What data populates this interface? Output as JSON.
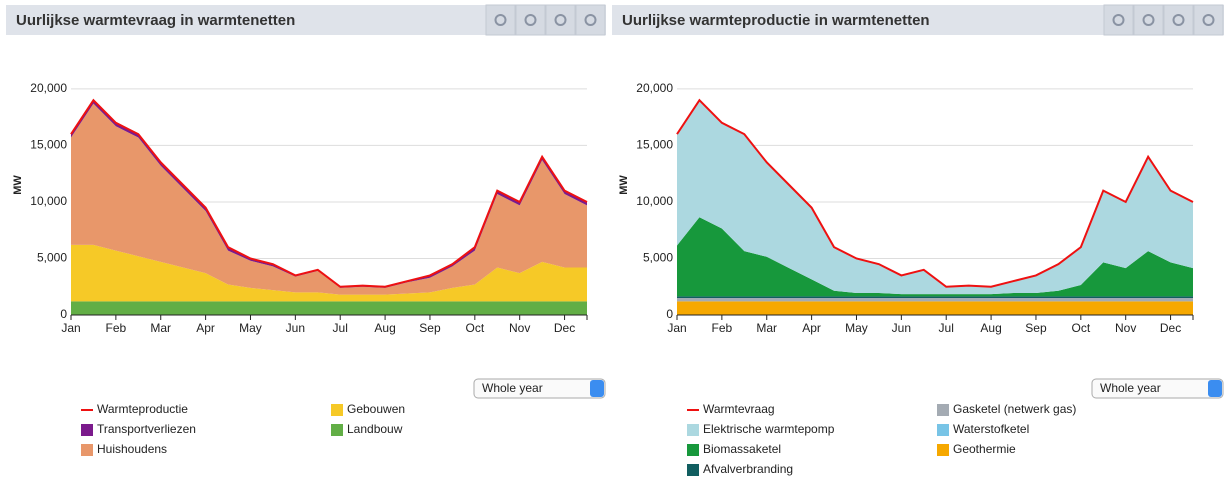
{
  "chart_data": [
    {
      "type": "area",
      "title": "Uurlijkse warmtevraag in warmtenetten",
      "ylabel": "MW",
      "selector": "Whole year",
      "categories": [
        "Jan",
        null,
        "Feb",
        null,
        "Mar",
        null,
        "Apr",
        null,
        "May",
        null,
        "Jun",
        null,
        "Jul",
        null,
        "Aug",
        null,
        "Sep",
        null,
        "Oct",
        null,
        "Nov",
        null,
        "Dec",
        null
      ],
      "ylim": [
        0,
        23000
      ],
      "yticks": [
        0,
        {
          "value": 5000,
          "label": "5,000"
        },
        {
          "value": 10000,
          "label": "10,000"
        },
        {
          "value": 15000,
          "label": "15,000"
        },
        {
          "value": 20000,
          "label": "20,000"
        }
      ],
      "grid": true,
      "series": [
        {
          "name": "Warmteproductie",
          "type": "line",
          "color": "#ee1111",
          "values": [
            16000,
            19000,
            17000,
            16000,
            13500,
            11500,
            9500,
            6000,
            5000,
            4500,
            3500,
            4000,
            2500,
            2600,
            2500,
            3000,
            3500,
            4500,
            6000,
            11000,
            10000,
            14000,
            11000,
            10000
          ]
        },
        {
          "name": "Transportverliezen",
          "type": "area",
          "color": "#7b1a8c",
          "values": [
            300,
            300,
            300,
            300,
            300,
            300,
            300,
            300,
            200,
            200,
            100,
            100,
            100,
            100,
            100,
            100,
            200,
            200,
            300,
            300,
            300,
            300,
            300,
            300
          ]
        },
        {
          "name": "Huishoudens",
          "type": "area",
          "color": "#e8976a",
          "values": [
            9500,
            12500,
            11000,
            10500,
            8500,
            7000,
            5500,
            3000,
            2400,
            2100,
            1400,
            1900,
            600,
            700,
            600,
            1000,
            1300,
            1900,
            3000,
            6500,
            6000,
            9000,
            6500,
            5500
          ]
        },
        {
          "name": "Gebouwen",
          "type": "area",
          "color": "#f6c927",
          "values": [
            5000,
            5000,
            4500,
            4000,
            3500,
            3000,
            2500,
            1500,
            1200,
            1000,
            800,
            800,
            600,
            600,
            600,
            700,
            800,
            1200,
            1500,
            3000,
            2500,
            3500,
            3000,
            3000
          ]
        },
        {
          "name": "Landbouw",
          "type": "area",
          "color": "#62ae46",
          "values": [
            1200,
            1200,
            1200,
            1200,
            1200,
            1200,
            1200,
            1200,
            1200,
            1200,
            1200,
            1200,
            1200,
            1200,
            1200,
            1200,
            1200,
            1200,
            1200,
            1200,
            1200,
            1200,
            1200,
            1200
          ]
        }
      ]
    },
    {
      "type": "area",
      "title": "Uurlijkse warmteproductie in warmtenetten",
      "ylabel": "MW",
      "selector": "Whole year",
      "categories": [
        "Jan",
        null,
        "Feb",
        null,
        "Mar",
        null,
        "Apr",
        null,
        "May",
        null,
        "Jun",
        null,
        "Jul",
        null,
        "Aug",
        null,
        "Sep",
        null,
        "Oct",
        null,
        "Nov",
        null,
        "Dec",
        null
      ],
      "ylim": [
        0,
        23000
      ],
      "yticks": [
        0,
        {
          "value": 5000,
          "label": "5,000"
        },
        {
          "value": 10000,
          "label": "10,000"
        },
        {
          "value": 15000,
          "label": "15,000"
        },
        {
          "value": 20000,
          "label": "20,000"
        }
      ],
      "grid": true,
      "series": [
        {
          "name": "Warmtevraag",
          "type": "line",
          "color": "#ee1111",
          "values": [
            16000,
            19000,
            17000,
            16000,
            13500,
            11500,
            9500,
            6000,
            5000,
            4500,
            3500,
            4000,
            2500,
            2600,
            2500,
            3000,
            3500,
            4500,
            6000,
            11000,
            10000,
            14000,
            11000,
            10000
          ]
        },
        {
          "name": "Elektrische warmtepomp",
          "type": "area",
          "color": "#acd8e0",
          "values": [
            9850,
            10350,
            9350,
            10350,
            8350,
            7350,
            6350,
            3850,
            3050,
            2550,
            1650,
            2150,
            650,
            750,
            650,
            1050,
            1550,
            2350,
            3350,
            6350,
            5850,
            8350,
            6350,
            5850
          ]
        },
        {
          "name": "Biomassaketel",
          "type": "area",
          "color": "#17983c",
          "values": [
            4500,
            7000,
            6000,
            4000,
            3500,
            2500,
            1500,
            500,
            300,
            300,
            200,
            200,
            200,
            200,
            200,
            300,
            300,
            500,
            1000,
            3000,
            2500,
            4000,
            3000,
            2500
          ]
        },
        {
          "name": "Afvalverbranding",
          "type": "area",
          "color": "#115e60",
          "values": [
            150,
            150,
            150,
            150,
            150,
            150,
            150,
            150,
            150,
            150,
            150,
            150,
            150,
            150,
            150,
            150,
            150,
            150,
            150,
            150,
            150,
            150,
            150,
            150
          ]
        },
        {
          "name": "Gasketel (netwerk gas)",
          "type": "area",
          "color": "#a4abb3",
          "values": [
            300,
            300,
            300,
            300,
            300,
            300,
            300,
            300,
            300,
            300,
            300,
            300,
            300,
            300,
            300,
            300,
            300,
            300,
            300,
            300,
            300,
            300,
            300,
            300
          ]
        },
        {
          "name": "Waterstofketel",
          "type": "area",
          "color": "#78c4e6",
          "values": [
            0,
            0,
            0,
            0,
            0,
            0,
            0,
            0,
            0,
            0,
            0,
            0,
            0,
            0,
            0,
            0,
            0,
            0,
            0,
            0,
            0,
            0,
            0,
            0
          ]
        },
        {
          "name": "Geothermie",
          "type": "area",
          "color": "#f6a800",
          "values": [
            1200,
            1200,
            1200,
            1200,
            1200,
            1200,
            1200,
            1200,
            1200,
            1200,
            1200,
            1200,
            1200,
            1200,
            1200,
            1200,
            1200,
            1200,
            1200,
            1200,
            1200,
            1200,
            1200,
            1200
          ]
        }
      ]
    }
  ]
}
